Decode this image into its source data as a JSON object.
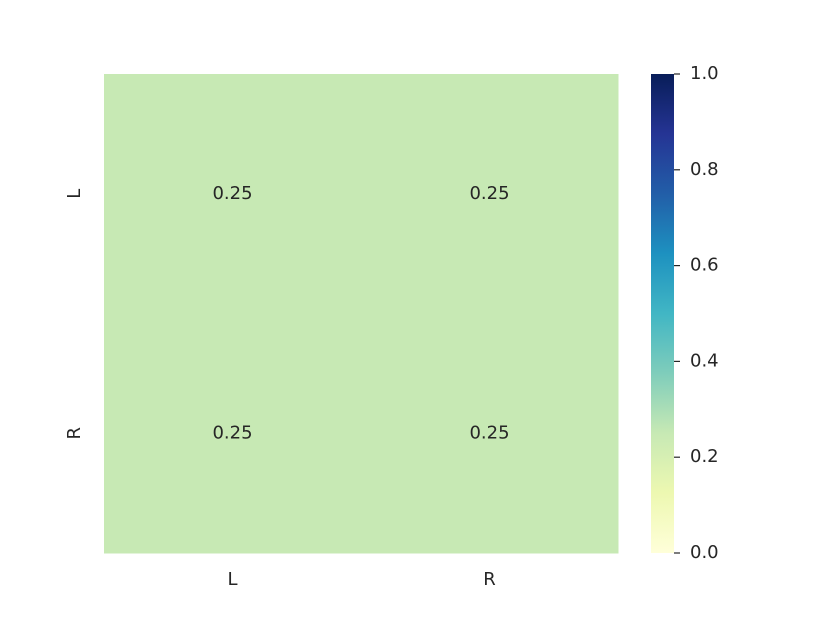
{
  "chart_data": {
    "type": "heatmap",
    "x": [
      "L",
      "R"
    ],
    "y": [
      "L",
      "R"
    ],
    "values": [
      [
        0.25,
        0.25
      ],
      [
        0.25,
        0.25
      ]
    ],
    "cmap": "YlGnBu",
    "clim": [
      0,
      1
    ],
    "cticks": [
      {
        "value": 0,
        "label": "0.0"
      },
      0.2,
      0.4,
      0.6,
      0.8,
      {
        "value": 1,
        "label": "1.0"
      }
    ]
  }
}
